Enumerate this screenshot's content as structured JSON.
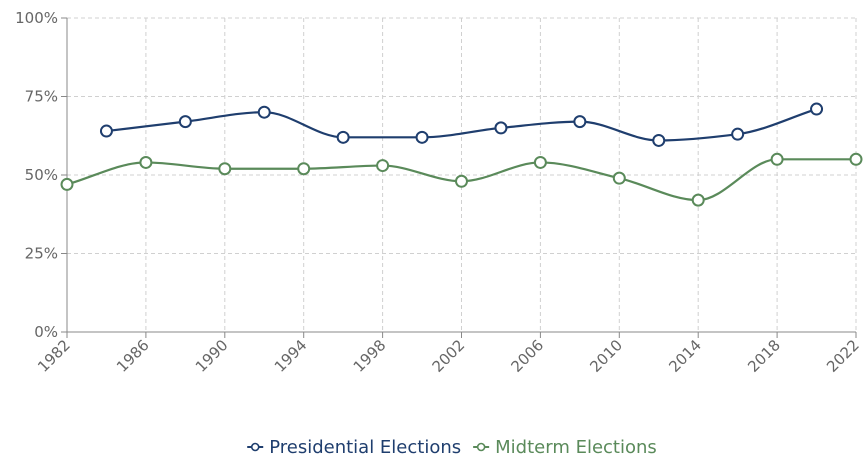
{
  "chart_data": {
    "type": "line",
    "title": "",
    "xlabel": "",
    "ylabel": "",
    "x_ticks": [
      "1982",
      "1986",
      "1990",
      "1994",
      "1998",
      "2002",
      "2006",
      "2010",
      "2014",
      "2018",
      "2022"
    ],
    "xlim": [
      1982,
      2022
    ],
    "y_ticks": [
      "0%",
      "25%",
      "50%",
      "75%",
      "100%"
    ],
    "ylim": [
      0,
      100
    ],
    "grid": true,
    "legend_position": "bottom",
    "series": [
      {
        "name": "Presidential Elections",
        "color": "#1f3e6e",
        "x": [
          1984,
          1988,
          1992,
          1996,
          2000,
          2004,
          2008,
          2012,
          2016,
          2020
        ],
        "y": [
          64,
          67,
          70,
          62,
          62,
          65,
          67,
          61,
          63,
          71
        ]
      },
      {
        "name": "Midterm Elections",
        "color": "#5a8a5a",
        "x": [
          1982,
          1986,
          1990,
          1994,
          1998,
          2002,
          2006,
          2010,
          2014,
          2018,
          2022
        ],
        "y": [
          47,
          54,
          52,
          52,
          53,
          48,
          54,
          49,
          42,
          55,
          55
        ]
      }
    ]
  }
}
